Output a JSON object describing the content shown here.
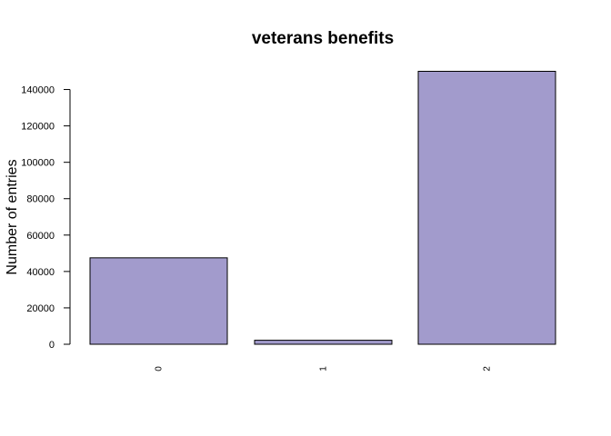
{
  "chart_data": {
    "type": "bar",
    "title": "veterans benefits",
    "xlabel": "",
    "ylabel": "Number of entries",
    "categories": [
      "0",
      "1",
      "2"
    ],
    "values": [
      47500,
      2200,
      150000
    ],
    "yticks": [
      0,
      20000,
      40000,
      60000,
      80000,
      100000,
      120000,
      140000
    ],
    "ytick_labels": [
      "0",
      "20000",
      "40000",
      "60000",
      "80000",
      "100000",
      "120000",
      "140000"
    ],
    "ylim": [
      0,
      150000
    ],
    "bar_color": "#a29bcc",
    "bar_border_color": "#000000",
    "grid": false
  }
}
